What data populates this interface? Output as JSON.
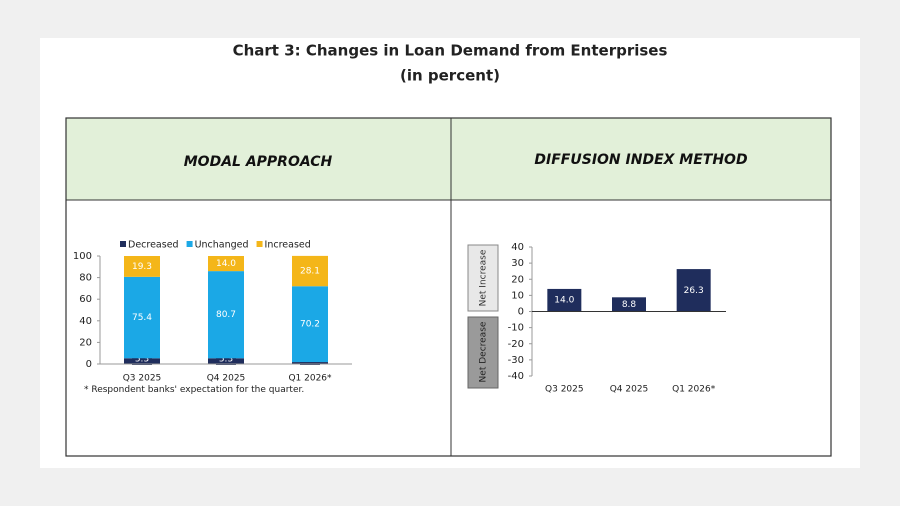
{
  "title": "Chart 3: Changes in Loan Demand from Enterprises",
  "subtitle": "(in percent)",
  "chart_data": [
    {
      "type": "stacked-bar",
      "title": "MODAL APPROACH",
      "categories": [
        "Q3 2025",
        "Q4 2025",
        "Q1 2026*"
      ],
      "series": [
        {
          "name": "Decreased",
          "color": "#1f2d5c",
          "values": [
            5.3,
            5.3,
            1.8
          ]
        },
        {
          "name": "Unchanged",
          "color": "#1ba8e6",
          "values": [
            75.4,
            80.7,
            70.2
          ]
        },
        {
          "name": "Increased",
          "color": "#f4b619",
          "values": [
            19.3,
            14.0,
            28.1
          ],
          "value_labels": [
            "19.3",
            "14.0",
            "28.1"
          ]
        }
      ],
      "ylim": [
        0,
        100
      ],
      "yticks": [
        0,
        20,
        40,
        60,
        80,
        100
      ],
      "legend": "top",
      "note": "* Respondent banks' expectation for the quarter."
    },
    {
      "type": "bar",
      "title": "DIFFUSION INDEX METHOD",
      "categories": [
        "Q3 2025",
        "Q4 2025",
        "Q1 2026*"
      ],
      "values": [
        14.0,
        8.8,
        26.3
      ],
      "value_labels": [
        "14.0",
        "8.8",
        "26.3"
      ],
      "color": "#1f2d5c",
      "ylim": [
        -40,
        40
      ],
      "yticks": [
        -40,
        -30,
        -20,
        -10,
        0,
        10,
        20,
        30,
        40
      ],
      "upper_label": "Net Increase",
      "lower_label": "Net Decrease"
    }
  ]
}
